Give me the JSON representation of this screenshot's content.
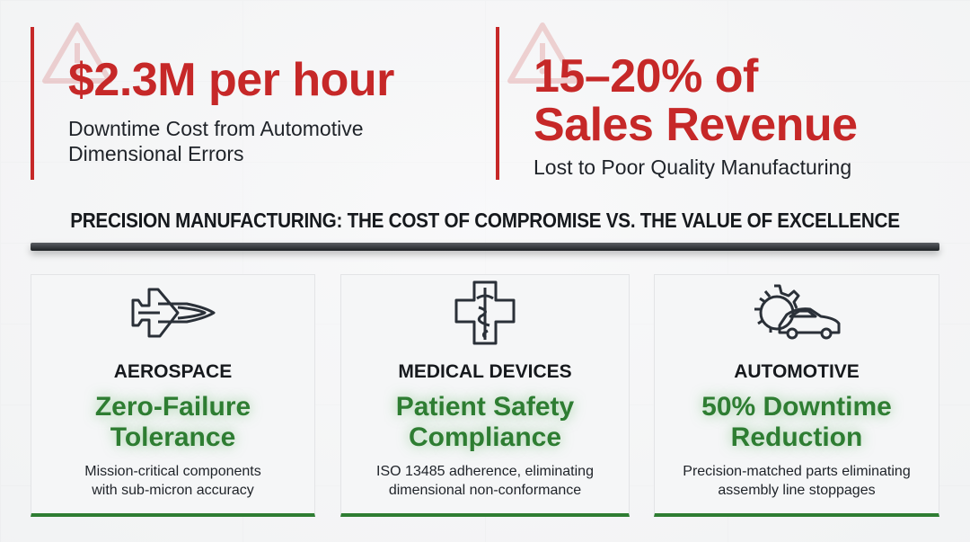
{
  "stats": [
    {
      "value": "$2.3M per hour",
      "label_lines": [
        "Downtime Cost from Automotive",
        "Dimensional Errors"
      ],
      "icon": "warning-icon"
    },
    {
      "value_lines": [
        "15–20% of",
        "Sales Revenue"
      ],
      "label": "Lost to Poor Quality Manufacturing",
      "icon": "warning-icon"
    }
  ],
  "banner": "PRECISION MANUFACTURING: THE COST OF COMPROMISE VS. THE VALUE OF EXCELLENCE",
  "cards": [
    {
      "icon": "fighter-jet-icon",
      "category": "AEROSPACE",
      "headline_lines": [
        "Zero-Failure",
        "Tolerance"
      ],
      "desc_lines": [
        "Mission-critical components",
        "with sub-micron accuracy"
      ]
    },
    {
      "icon": "medical-cross-caduceus-icon",
      "category": "MEDICAL DEVICES",
      "headline_lines": [
        "Patient Safety",
        "Compliance"
      ],
      "desc_lines": [
        "ISO 13485 adherence, eliminating",
        "dimensional non-conformance"
      ]
    },
    {
      "icon": "gear-car-icon",
      "category": "AUTOMOTIVE",
      "headline_lines": [
        "50% Downtime",
        "Reduction"
      ],
      "desc_lines": [
        "Precision-matched parts eliminating",
        "assembly line stoppages"
      ]
    }
  ],
  "colors": {
    "red": "#c62828",
    "green": "#2e7d32",
    "dark": "#16191d"
  }
}
